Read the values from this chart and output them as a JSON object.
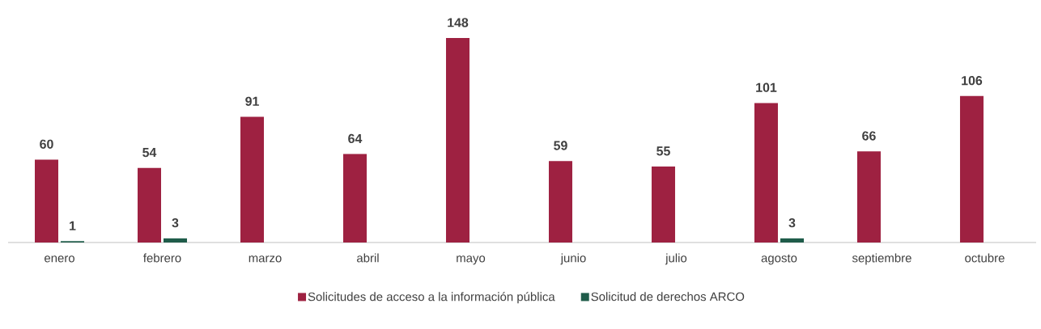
{
  "chart_data": {
    "type": "bar",
    "categories": [
      "enero",
      "febrero",
      "marzo",
      "abril",
      "mayo",
      "junio",
      "julio",
      "agosto",
      "septiembre",
      "octubre"
    ],
    "series": [
      {
        "name": "Solicitudes de acceso a la información pública",
        "color": "#9e2141",
        "values": [
          60,
          54,
          91,
          64,
          148,
          59,
          55,
          101,
          66,
          106
        ]
      },
      {
        "name": "Solicitud de derechos ARCO",
        "color": "#1f5c4a",
        "values": [
          1,
          3,
          null,
          null,
          null,
          null,
          null,
          3,
          null,
          null
        ]
      }
    ],
    "data_labels": true,
    "legend": "bottom"
  }
}
